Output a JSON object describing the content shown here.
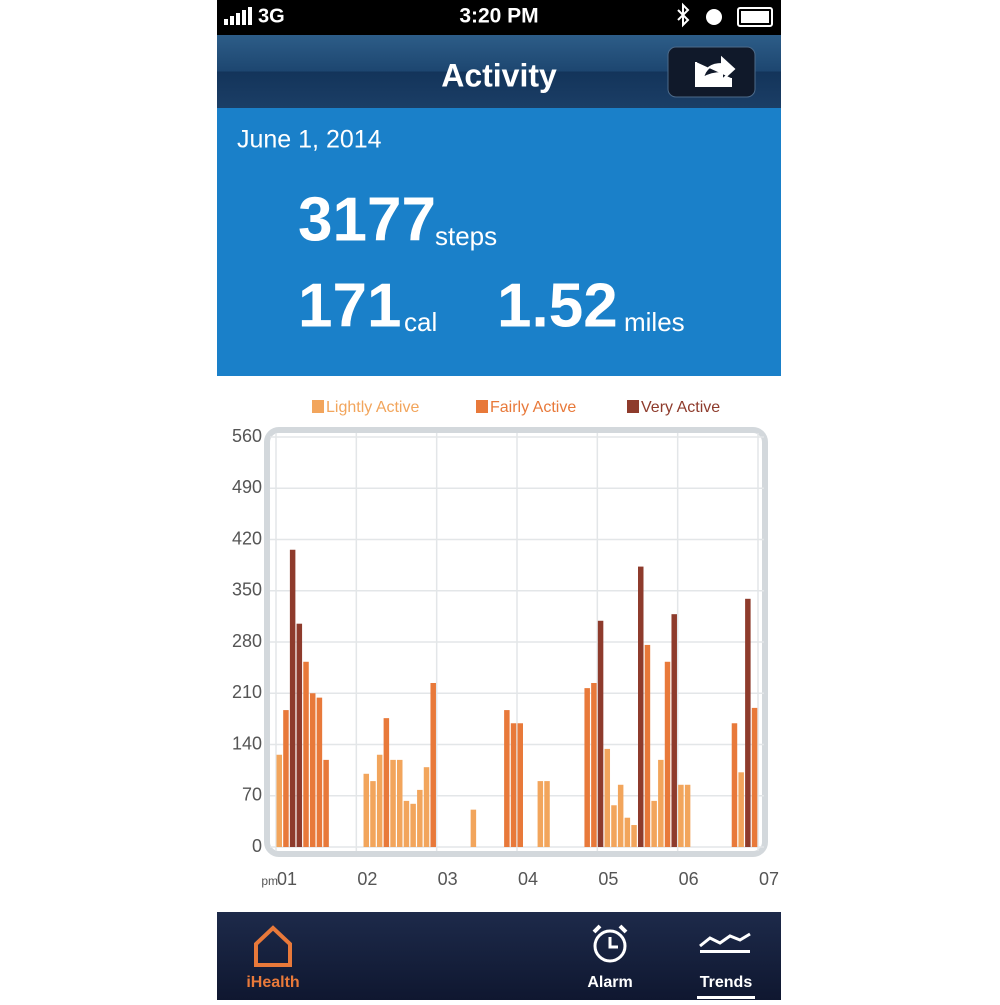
{
  "status_bar": {
    "network": "3G",
    "time": "3:20 PM"
  },
  "header": {
    "title": "Activity"
  },
  "summary": {
    "date": "June 1, 2014",
    "steps": 3177,
    "steps_unit": "steps",
    "cal": 171,
    "cal_unit": "cal",
    "miles": 1.52,
    "miles_unit": "miles"
  },
  "chart_data": {
    "type": "bar",
    "x_prefix": "pm",
    "xlim": [
      0,
      360
    ],
    "xticks": [
      {
        "value": 0,
        "label": "01"
      },
      {
        "value": 60,
        "label": "02"
      },
      {
        "value": 120,
        "label": "03"
      },
      {
        "value": 180,
        "label": "04"
      },
      {
        "value": 240,
        "label": "05"
      },
      {
        "value": 300,
        "label": "06"
      },
      {
        "value": 360,
        "label": "07"
      }
    ],
    "ylim": [
      0,
      560
    ],
    "yticks": [
      0,
      70,
      140,
      210,
      280,
      350,
      420,
      490,
      560
    ],
    "grid": true,
    "series": [
      {
        "name": "Lightly Active",
        "color": "#f2a55c",
        "x": [
          0,
          65,
          70,
          75,
          85,
          90,
          95,
          100,
          105,
          110,
          145,
          195,
          200,
          245,
          250,
          255,
          260,
          265,
          280,
          285,
          300,
          305,
          345
        ],
        "values": [
          126,
          100,
          90,
          126,
          119,
          119,
          63,
          59,
          78,
          109,
          51,
          90,
          90,
          134,
          57,
          85,
          40,
          30,
          63,
          119,
          85,
          85,
          102
        ]
      },
      {
        "name": "Fairly Active",
        "color": "#e8793a",
        "x": [
          5,
          20,
          25,
          30,
          35,
          80,
          115,
          170,
          175,
          180,
          230,
          235,
          275,
          290,
          340,
          355
        ],
        "values": [
          187,
          253,
          210,
          204,
          119,
          176,
          224,
          187,
          169,
          169,
          217,
          224,
          276,
          253,
          169,
          190
        ]
      },
      {
        "name": "Very Active",
        "color": "#8e3b2c",
        "x": [
          10,
          15,
          240,
          270,
          295,
          350
        ],
        "values": [
          406,
          305,
          309,
          383,
          318,
          339
        ]
      }
    ]
  },
  "tab_bar": {
    "items": [
      "iHealth",
      "Alarm",
      "Trends"
    ]
  }
}
